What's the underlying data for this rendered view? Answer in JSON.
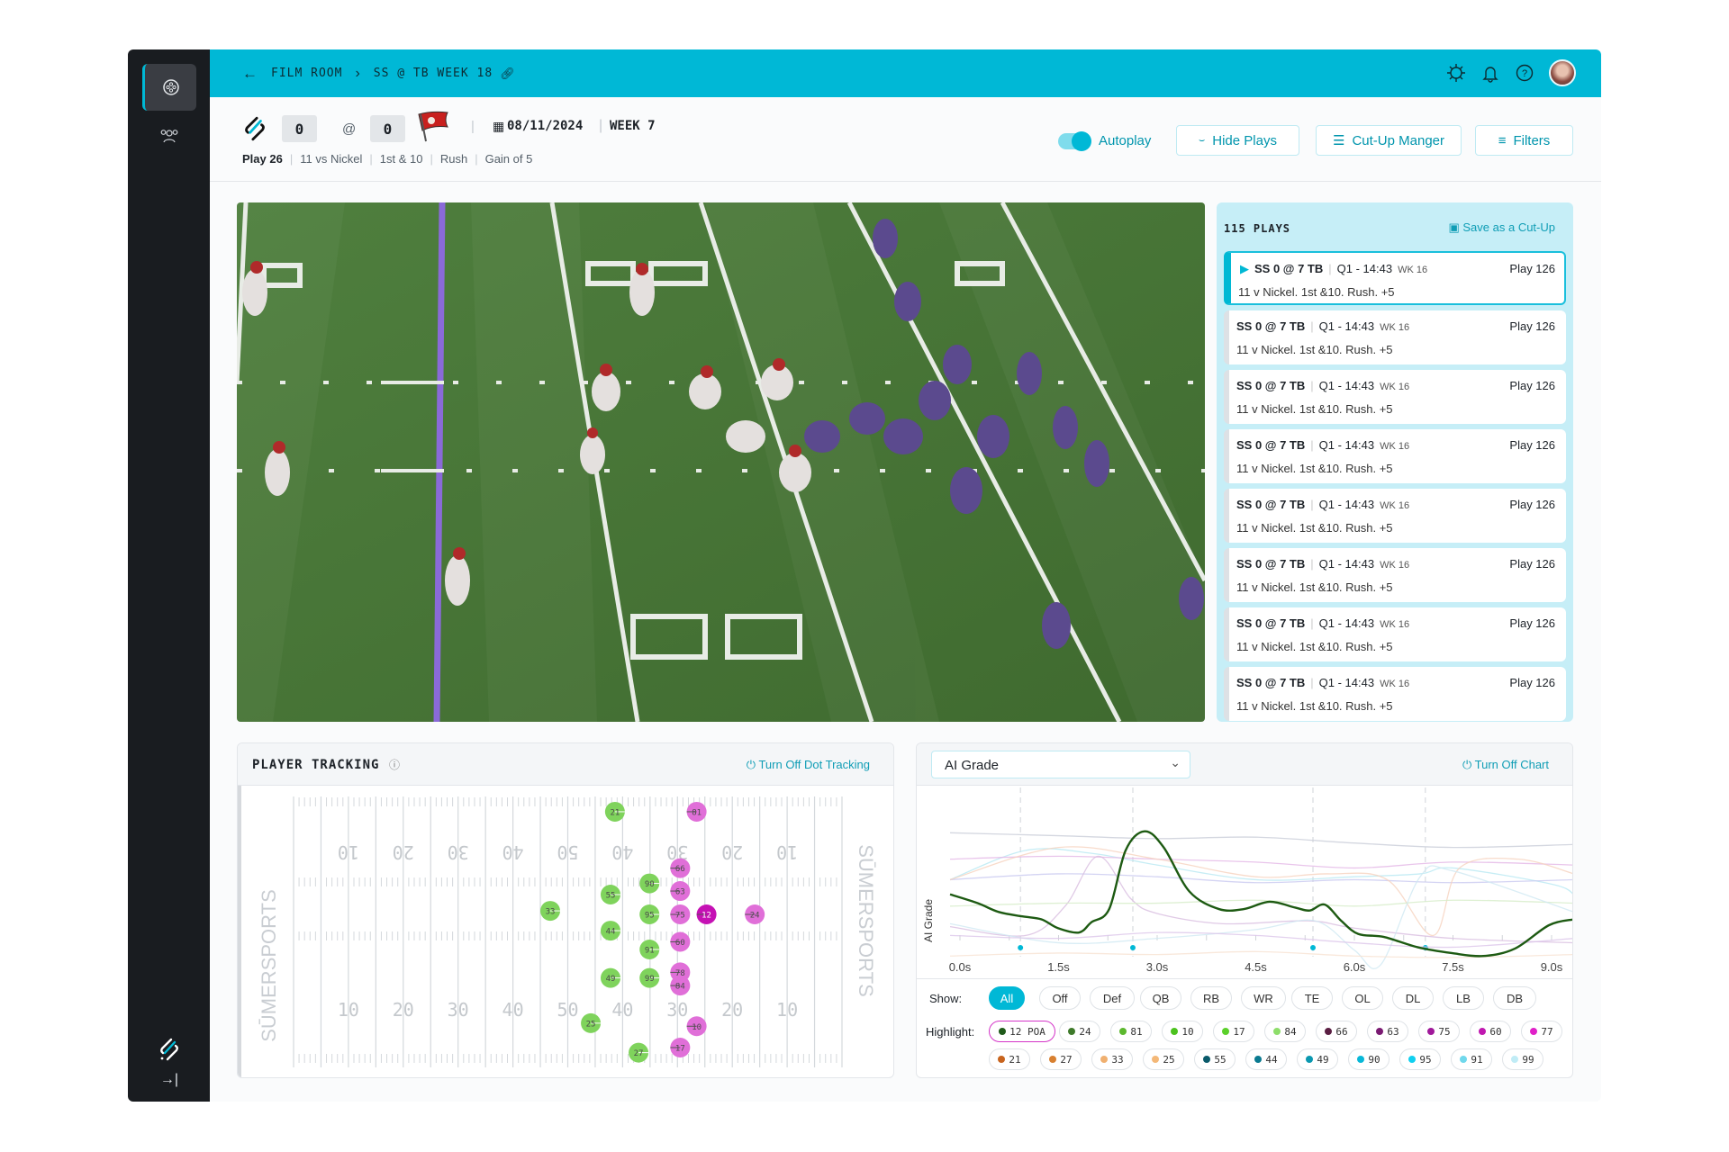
{
  "breadcrumb": {
    "back_icon": "arrow-left-icon",
    "root": "FILM ROOM",
    "current": "SS @ TB WEEK 18",
    "link_icon": "link-icon"
  },
  "topbar_icons": [
    "gear-icon",
    "bell-icon",
    "help-icon",
    "avatar"
  ],
  "sidebar": {
    "items": [
      {
        "icon": "film-reel-icon",
        "active": true
      },
      {
        "icon": "users-icon",
        "active": false
      }
    ],
    "bottom": [
      {
        "icon": "sumer-logo"
      },
      {
        "icon": "expand-icon"
      }
    ]
  },
  "game": {
    "away_score": "0",
    "at": "@",
    "home_score": "0",
    "date": "08/11/2024",
    "week": "WEEK 7",
    "play": "Play 26",
    "personnel": "11 vs Nickel",
    "down": "1st & 10",
    "type": "Rush",
    "result": "Gain of 5"
  },
  "toolbar": {
    "autoplay_label": "Autoplay",
    "autoplay_on": true,
    "hide_plays": "Hide Plays",
    "cutup_manager": "Cut-Up Manger",
    "filters": "Filters"
  },
  "playlist": {
    "count_label": "115 PLAYS",
    "save_label": "Save as a Cut-Up",
    "items": [
      {
        "matchup": "SS 0 @ 7 TB",
        "clock": "Q1 - 14:43",
        "week": "WK 16",
        "play": "Play 126",
        "desc": "11 v Nickel. 1st &10. Rush. +5",
        "active": true
      },
      {
        "matchup": "SS 0 @ 7 TB",
        "clock": "Q1 - 14:43",
        "week": "WK 16",
        "play": "Play 126",
        "desc": "11 v Nickel. 1st &10. Rush. +5"
      },
      {
        "matchup": "SS 0 @ 7 TB",
        "clock": "Q1 - 14:43",
        "week": "WK 16",
        "play": "Play 126",
        "desc": "11 v Nickel. 1st &10. Rush. +5"
      },
      {
        "matchup": "SS 0 @ 7 TB",
        "clock": "Q1 - 14:43",
        "week": "WK 16",
        "play": "Play 126",
        "desc": "11 v Nickel. 1st &10. Rush. +5"
      },
      {
        "matchup": "SS 0 @ 7 TB",
        "clock": "Q1 - 14:43",
        "week": "WK 16",
        "play": "Play 126",
        "desc": "11 v Nickel. 1st &10. Rush. +5"
      },
      {
        "matchup": "SS 0 @ 7 TB",
        "clock": "Q1 - 14:43",
        "week": "WK 16",
        "play": "Play 126",
        "desc": "11 v Nickel. 1st &10. Rush. +5"
      },
      {
        "matchup": "SS 0 @ 7 TB",
        "clock": "Q1 - 14:43",
        "week": "WK 16",
        "play": "Play 126",
        "desc": "11 v Nickel. 1st &10. Rush. +5"
      },
      {
        "matchup": "SS 0 @ 7 TB",
        "clock": "Q1 - 14:43",
        "week": "WK 16",
        "play": "Play 126",
        "desc": "11 v Nickel. 1st &10. Rush. +5"
      }
    ]
  },
  "tracking": {
    "title": "PLAYER TRACKING",
    "toggle_label": "Turn Off Dot Tracking",
    "watermark": "SŪMERSPORTS",
    "yard_numbers": [
      "10",
      "20",
      "30",
      "40",
      "50",
      "40",
      "30",
      "20",
      "10"
    ],
    "colors": {
      "defense": "#7fd35c",
      "offense": "#e06fd8",
      "ball_carrier": "#c511b4"
    },
    "players": [
      {
        "num": "21",
        "side": "defense",
        "yard": 58.6,
        "lateral": 3.0
      },
      {
        "num": "81",
        "side": "offense",
        "yard": 73.5,
        "lateral": 3.0
      },
      {
        "num": "66",
        "side": "offense",
        "yard": 70.5,
        "lateral": 14.1
      },
      {
        "num": "90",
        "side": "defense",
        "yard": 64.9,
        "lateral": 17.1
      },
      {
        "num": "55",
        "side": "defense",
        "yard": 57.8,
        "lateral": 19.3
      },
      {
        "num": "63",
        "side": "offense",
        "yard": 70.5,
        "lateral": 18.6
      },
      {
        "num": "33",
        "side": "defense",
        "yard": 46.8,
        "lateral": 22.5
      },
      {
        "num": "95",
        "side": "defense",
        "yard": 64.9,
        "lateral": 23.2
      },
      {
        "num": "75",
        "side": "offense",
        "yard": 70.5,
        "lateral": 23.2
      },
      {
        "num": "12",
        "side": "ball_carrier",
        "yard": 75.3,
        "lateral": 23.2
      },
      {
        "num": "24",
        "side": "offense",
        "yard": 84.1,
        "lateral": 23.2
      },
      {
        "num": "44",
        "side": "defense",
        "yard": 57.8,
        "lateral": 26.4
      },
      {
        "num": "60",
        "side": "offense",
        "yard": 70.5,
        "lateral": 28.6
      },
      {
        "num": "91",
        "side": "defense",
        "yard": 64.9,
        "lateral": 30.1
      },
      {
        "num": "78",
        "side": "offense",
        "yard": 70.5,
        "lateral": 34.6
      },
      {
        "num": "49",
        "side": "defense",
        "yard": 57.8,
        "lateral": 35.7
      },
      {
        "num": "99",
        "side": "defense",
        "yard": 64.9,
        "lateral": 35.7
      },
      {
        "num": "84",
        "side": "offense",
        "yard": 70.5,
        "lateral": 37.2
      },
      {
        "num": "25",
        "side": "defense",
        "yard": 54.2,
        "lateral": 44.6
      },
      {
        "num": "10",
        "side": "offense",
        "yard": 73.5,
        "lateral": 45.2
      },
      {
        "num": "27",
        "side": "defense",
        "yard": 62.9,
        "lateral": 50.4
      },
      {
        "num": "17",
        "side": "offense",
        "yard": 70.5,
        "lateral": 49.4
      }
    ]
  },
  "chart_panel": {
    "metric_select": "AI Grade",
    "toggle_label": "Turn Off Chart",
    "show_label": "Show:",
    "show_options": [
      "All",
      "Off",
      "Def",
      "QB",
      "RB",
      "WR",
      "TE",
      "OL",
      "DL",
      "LB",
      "DB"
    ],
    "show_selected": "All",
    "highlight_label": "Highlight:",
    "highlights": [
      {
        "label": "12 POA",
        "color": "#1f5a1a",
        "selected": true
      },
      {
        "label": "24",
        "color": "#3e7a2a"
      },
      {
        "label": "81",
        "color": "#5cb82e"
      },
      {
        "label": "10",
        "color": "#4cc21e"
      },
      {
        "label": "17",
        "color": "#5bd02a"
      },
      {
        "label": "84",
        "color": "#8ede6a"
      },
      {
        "label": "66",
        "color": "#5a1e42"
      },
      {
        "label": "63",
        "color": "#7a1a72"
      },
      {
        "label": "75",
        "color": "#a0189a"
      },
      {
        "label": "60",
        "color": "#c018b0"
      },
      {
        "label": "77",
        "color": "#e020c8"
      },
      {
        "label": "21",
        "color": "#c8641e"
      },
      {
        "label": "27",
        "color": "#d88030"
      },
      {
        "label": "33",
        "color": "#f0b070"
      },
      {
        "label": "25",
        "color": "#f4b878"
      },
      {
        "label": "55",
        "color": "#0a5a6a"
      },
      {
        "label": "44",
        "color": "#0a7a90"
      },
      {
        "label": "49",
        "color": "#0a98b0"
      },
      {
        "label": "90",
        "color": "#08b8d8"
      },
      {
        "label": "95",
        "color": "#10d0f0"
      },
      {
        "label": "91",
        "color": "#70d8ec"
      },
      {
        "label": "99",
        "color": "#c0ecf6"
      }
    ]
  },
  "chart_data": {
    "type": "line",
    "ylabel": "AI Grade",
    "xlabel": "",
    "x_tick_labels": [
      "0.0s",
      "1.5s",
      "3.0s",
      "4.5s",
      "6.0s",
      "7.5s",
      "9.0s"
    ],
    "x_ticks": [
      0,
      1.5,
      3,
      4.5,
      6,
      7.5,
      9
    ],
    "xlim": [
      -0.15,
      9.35
    ],
    "ylim": [
      0,
      100
    ],
    "grid": false,
    "event_markers": [
      0.92,
      2.63,
      5.37,
      7.08
    ],
    "highlight_color": "#1d5a12",
    "series": [
      {
        "highlighted": true,
        "x": [
          -0.15,
          0.27,
          0.59,
          0.95,
          1.24,
          1.49,
          1.81,
          2.0,
          2.27,
          2.52,
          2.81,
          3.1,
          3.49,
          3.94,
          4.32,
          4.71,
          5.1,
          5.32,
          5.55,
          5.8,
          6.06,
          6.45,
          6.96,
          7.48,
          7.96,
          8.44,
          8.96,
          9.34
        ],
        "y": [
          48,
          42,
          36,
          33,
          31,
          25,
          22,
          29,
          38,
          78,
          91,
          80,
          50,
          38,
          38,
          43,
          39,
          37,
          41,
          30,
          21,
          19,
          12,
          8,
          6,
          11,
          27,
          31
        ]
      },
      {
        "color": "#c9cdd8",
        "x": [
          -0.15,
          1.5,
          3,
          4.5,
          6,
          7.5,
          9.34
        ],
        "y": [
          90,
          88,
          86,
          87,
          83,
          80,
          82
        ]
      },
      {
        "color": "#b8e8f2",
        "x": [
          -0.15,
          1,
          2,
          3,
          4.5,
          6,
          7,
          7.5,
          9,
          9.34
        ],
        "y": [
          58,
          78,
          76,
          68,
          58,
          60,
          62,
          66,
          55,
          48
        ]
      },
      {
        "color": "#e3b6e6",
        "x": [
          -0.15,
          1.5,
          3,
          4.5,
          6,
          7.5,
          9.34
        ],
        "y": [
          72,
          74,
          72,
          70,
          66,
          70,
          68
        ]
      },
      {
        "color": "#c9c9f0",
        "x": [
          -0.15,
          1.5,
          3,
          4.5,
          6,
          7.5,
          9.34
        ],
        "y": [
          58,
          62,
          60,
          56,
          58,
          56,
          58
        ]
      },
      {
        "color": "#d8bde0",
        "x": [
          -0.15,
          1,
          1.6,
          2.1,
          2.6,
          3,
          4,
          5.3,
          6,
          7.5,
          9.34
        ],
        "y": [
          26,
          20,
          40,
          74,
          45,
          35,
          28,
          30,
          25,
          18,
          15
        ]
      },
      {
        "color": "#f6d2be",
        "x": [
          -0.15,
          1.5,
          3,
          4.5,
          5.6,
          6.5,
          7.2,
          7.6,
          8.5,
          9.34
        ],
        "y": [
          58,
          80,
          72,
          60,
          62,
          58,
          20,
          66,
          72,
          62
        ]
      },
      {
        "color": "#d6ecc8",
        "x": [
          -0.15,
          1.5,
          3,
          4.5,
          6,
          7.5,
          9.34
        ],
        "y": [
          40,
          42,
          42,
          44,
          40,
          44,
          42
        ]
      },
      {
        "color": "#cfe8f2",
        "x": [
          -0.15,
          1.5,
          3,
          4.5,
          5.4,
          6,
          6.4,
          7,
          7.5,
          9.34
        ],
        "y": [
          28,
          15,
          18,
          24,
          30,
          10,
          0,
          60,
          64,
          36
        ]
      },
      {
        "color": "#dcc6ea",
        "x": [
          -0.15,
          1.5,
          3,
          4.5,
          6,
          7.5,
          9.34
        ],
        "y": [
          20,
          18,
          22,
          20,
          15,
          12,
          18
        ]
      },
      {
        "color": "#f8e2d2",
        "x": [
          -0.15,
          1.5,
          3,
          4.5,
          6,
          7.5,
          9.34
        ],
        "y": [
          6,
          8,
          7,
          9,
          6,
          5,
          7
        ]
      }
    ]
  }
}
